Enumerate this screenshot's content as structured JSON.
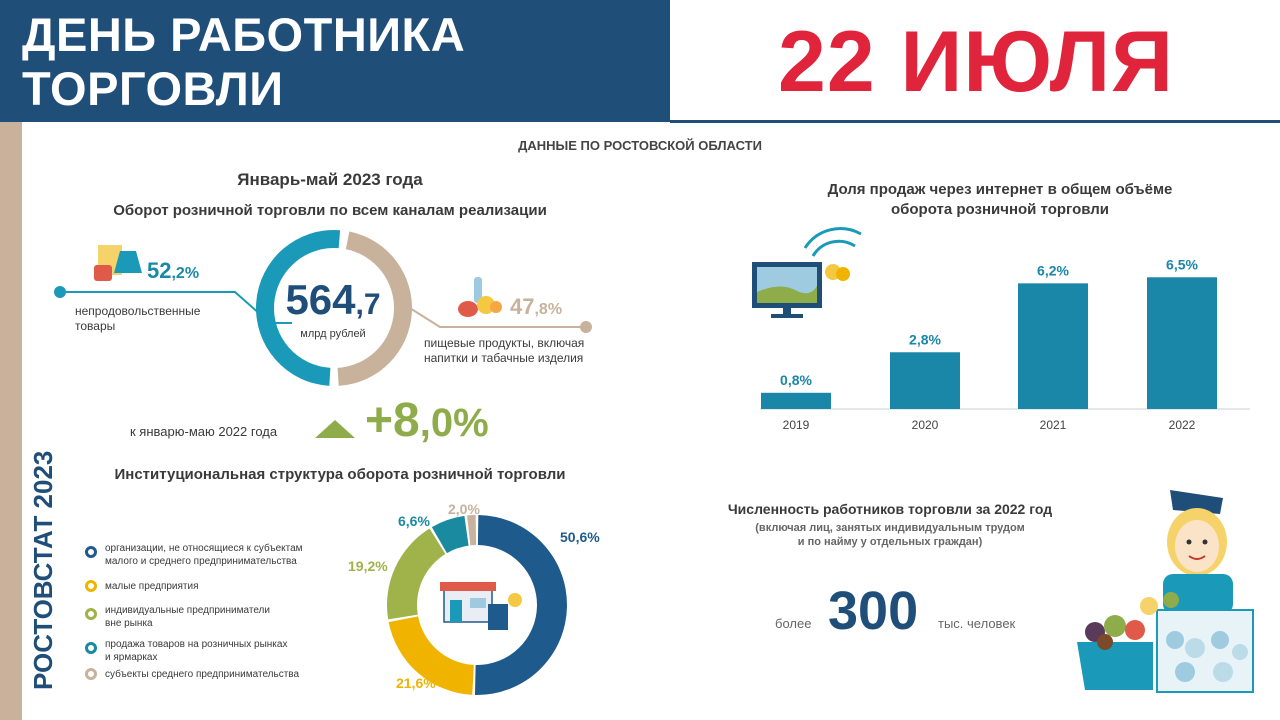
{
  "header": {
    "title_line1": "ДЕНЬ РАБОТНИКА",
    "title_line2": "ТОРГОВЛИ",
    "date": "22 ИЮЛЯ"
  },
  "side_label": "РОСТОВСТАТ 2023",
  "region_label": "ДАННЫЕ ПО РОСТОВСКОЙ ОБЛАСТИ",
  "turnover": {
    "period": "Январь-май 2023 года",
    "title": "Оборот розничной торговли по всем каналам реализации",
    "total_int": "564",
    "total_dec": ",7",
    "total_unit": "млрд рублей",
    "nonfood_pct_int": "52",
    "nonfood_pct_dec": ",2%",
    "nonfood_label_1": "непродовольственные",
    "nonfood_label_2": "товары",
    "food_pct_int": "47",
    "food_pct_dec": ",8%",
    "food_label_1": "пищевые продукты, включая",
    "food_label_2": "напитки и табачные изделия",
    "shares": [
      52.2,
      47.8
    ],
    "colors": [
      "#1a9ab8",
      "#c8b29c"
    ],
    "growth_label": "к январю-маю 2022 года",
    "growth_int": "+8",
    "growth_dec": ",0%"
  },
  "structure": {
    "title": "Институциональная структура оборота розничной торговли",
    "legend": [
      {
        "text_1": "организации, не относящиеся к субъектам",
        "text_2": "малого и среднего предпринимательства",
        "color": "#1f5a8c"
      },
      {
        "text_1": "малые предприятия",
        "text_2": "",
        "color": "#f0b400"
      },
      {
        "text_1": "индивидуальные предприниматели",
        "text_2": "вне рынка",
        "color": "#a0b24a"
      },
      {
        "text_1": "продажа товаров на розничных рынках",
        "text_2": "и ярмарках",
        "color": "#1a8aa0"
      },
      {
        "text_1": "субъекты среднего предпринимательства",
        "text_2": "",
        "color": "#c8b29c"
      }
    ]
  },
  "internet": {
    "title_1": "Доля продаж через интернет в общем объёме",
    "title_2": "оборота розничной торговли"
  },
  "workers": {
    "title": "Численность работников торговли за 2022 год",
    "subtitle_1": "(включая лиц, занятых индивидуальным трудом",
    "subtitle_2": "и по найму у отдельных граждан)",
    "prefix": "более",
    "value": "300",
    "unit": "тыс. человек"
  },
  "chart_data": [
    {
      "type": "pie",
      "categories": [
        "организации, не относящиеся к субъектам малого и среднего предпринимательства",
        "малые предприятия",
        "индивидуальные предприниматели вне рынка",
        "продажа товаров на розничных рынках и ярмарках",
        "субъекты среднего предпринимательства"
      ],
      "values": [
        50.6,
        21.6,
        19.2,
        6.6,
        2.0
      ],
      "labels": [
        "50,6%",
        "21,6%",
        "19,2%",
        "6,6%",
        "2,0%"
      ],
      "colors": [
        "#1f5a8c",
        "#f0b400",
        "#a0b24a",
        "#1a8aa0",
        "#c8b29c"
      ]
    },
    {
      "type": "bar",
      "categories": [
        "2019",
        "2020",
        "2021",
        "2022"
      ],
      "values": [
        0.8,
        2.8,
        6.2,
        6.5
      ],
      "labels": [
        "0,8%",
        "2,8%",
        "6,2%",
        "6,5%"
      ],
      "ylim": [
        0,
        7.5
      ],
      "color": "#1a86a8"
    }
  ]
}
